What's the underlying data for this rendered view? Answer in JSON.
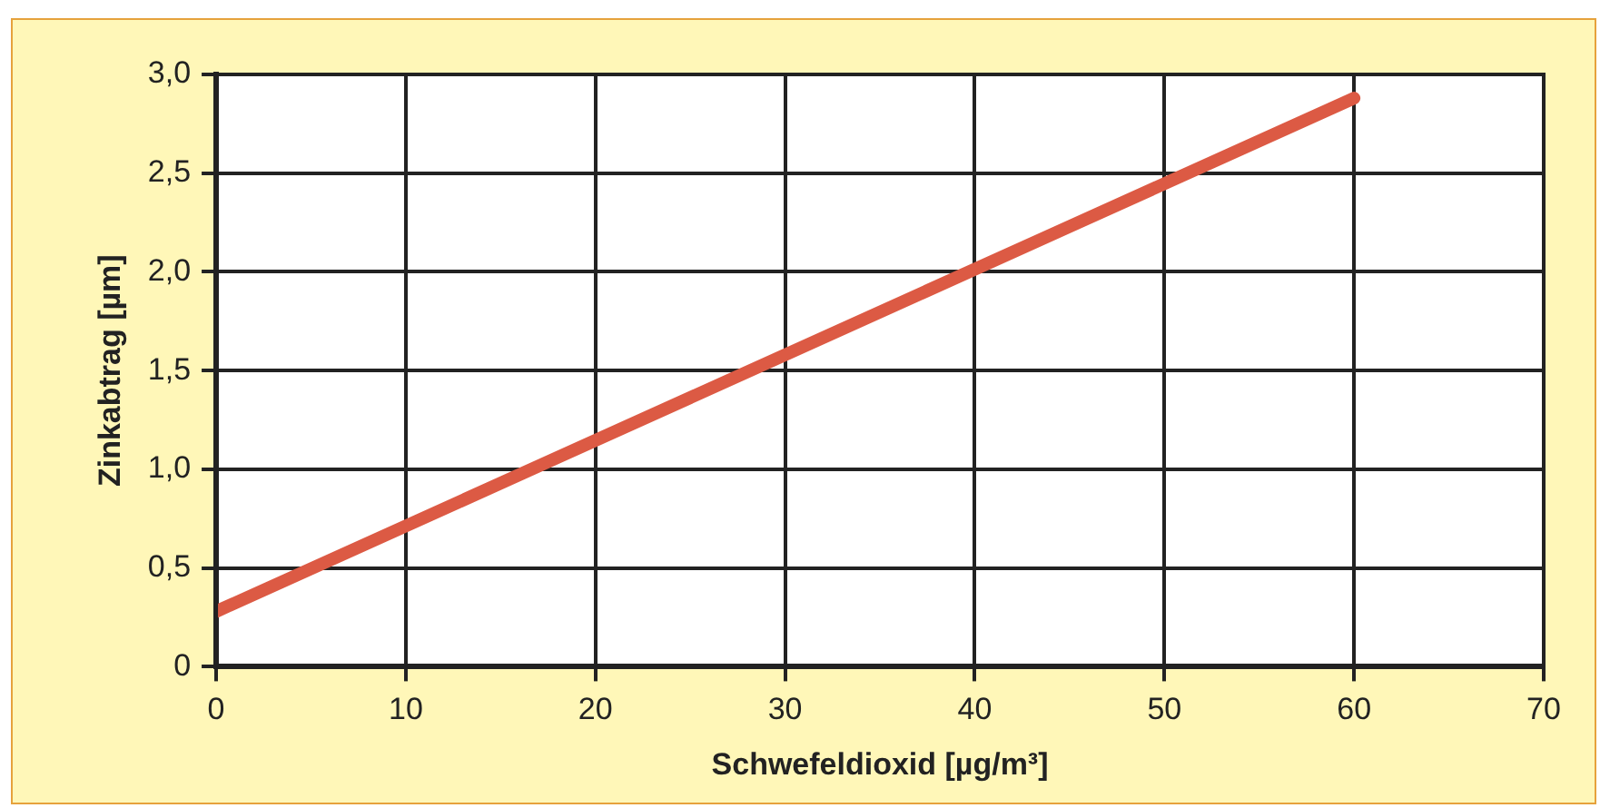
{
  "chart_data": {
    "type": "line",
    "xlabel": "Schwefeldioxid [µg/m³]",
    "ylabel": "Zinkabtrag [µm]",
    "x": [
      0,
      60
    ],
    "series": [
      {
        "color": "#dc5a44",
        "values": [
          0.28,
          2.88
        ]
      }
    ],
    "xlim": [
      0,
      70
    ],
    "xticks": [
      0,
      10,
      20,
      30,
      40,
      50,
      60,
      70
    ],
    "ylim": [
      0,
      3
    ],
    "yticks": [
      0,
      {
        "value": 0.5,
        "label": "0,5"
      },
      {
        "value": 1,
        "label": "1,0"
      },
      {
        "value": 1.5,
        "label": "1,5"
      },
      {
        "value": 2,
        "label": "2,0"
      },
      {
        "value": 2.5,
        "label": "2,5"
      },
      {
        "value": 3,
        "label": "3,0"
      }
    ],
    "grid": true,
    "legend": false,
    "marker": "none",
    "line_style": "solid"
  }
}
